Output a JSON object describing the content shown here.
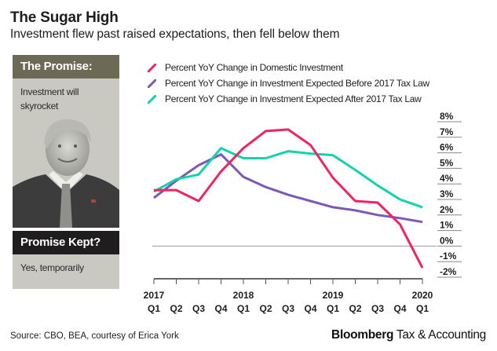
{
  "header": {
    "title": "The Sugar High",
    "subtitle": "Investment flew past raised expectations, then fell below them"
  },
  "sidebar": {
    "promise_heading": "The Promise:",
    "promise_text": "Investment will skyrocket",
    "portrait_icon": "portrait-photo",
    "kept_heading": "Promise Kept?",
    "kept_text": "Yes, temporarily",
    "colors": {
      "olive": "#6d6957",
      "dark": "#1f1d1e",
      "panel_bg": "#c9c9c1"
    }
  },
  "footer": {
    "source": "Source: CBO, BEA, courtesy of Erica York",
    "brand_bold": "Bloomberg",
    "brand_rest": " Tax & Accounting"
  },
  "chart_data": {
    "type": "line",
    "title": "The Sugar High",
    "xlabel": "",
    "ylabel": "",
    "x": [
      "2017 Q1",
      "2017 Q2",
      "2017 Q3",
      "2017 Q4",
      "2018 Q1",
      "2018 Q2",
      "2018 Q3",
      "2018 Q4",
      "2019 Q1",
      "2019 Q2",
      "2019 Q3",
      "2019 Q4",
      "2020 Q1"
    ],
    "x_tick_years": [
      "2017",
      "",
      "",
      "",
      "2018",
      "",
      "",
      "",
      "2019",
      "",
      "",
      "",
      "2020"
    ],
    "x_tick_quarters": [
      "Q1",
      "Q2",
      "Q3",
      "Q4",
      "Q1",
      "Q2",
      "Q3",
      "Q4",
      "Q1",
      "Q2",
      "Q3",
      "Q4",
      "Q1"
    ],
    "y_ticks": [
      8,
      7,
      6,
      5,
      4,
      3,
      2,
      1,
      0,
      -1,
      -2
    ],
    "y_tick_labels": [
      "8%",
      "7%",
      "6%",
      "5%",
      "4%",
      "3%",
      "2%",
      "1%",
      "0%",
      "-1%",
      "-2%"
    ],
    "ylim": [
      -2,
      8
    ],
    "y_axis_position": "right",
    "legend_position": "top-left",
    "series": [
      {
        "name": "Percent YoY Change in Domestic Investment",
        "color": "#f0245e",
        "values": [
          3.6,
          3.6,
          2.9,
          4.8,
          6.3,
          7.4,
          7.5,
          6.5,
          4.4,
          2.9,
          2.8,
          1.4,
          -1.4
        ]
      },
      {
        "name": "Percent YoY Change in Investment Expected Before 2017 Tax Law",
        "color": "#7c59b5",
        "values": [
          3.1,
          4.2,
          5.2,
          5.9,
          4.45,
          3.8,
          3.3,
          2.9,
          2.5,
          2.3,
          2.0,
          1.8,
          1.55
        ]
      },
      {
        "name": "Percent YoY Change in Investment Expected After 2017 Tax Law",
        "color": "#13d3ad",
        "values": [
          3.5,
          4.3,
          4.6,
          6.3,
          5.65,
          5.65,
          6.1,
          5.95,
          5.85,
          4.9,
          3.9,
          3.0,
          2.5
        ]
      }
    ]
  }
}
